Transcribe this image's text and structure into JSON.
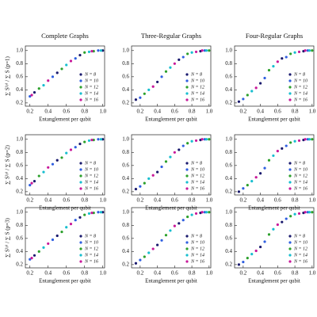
{
  "chart_data": [
    {
      "type": "scatter",
      "title": "Complete Graphs",
      "ylabel": "∑ S⁽ᵖ⁾ / ∑ S (p=1)",
      "xlabel": "Entanglement per qubit",
      "xlim": [
        0.15,
        1.02
      ],
      "ylim": [
        0.15,
        1.07
      ],
      "xticks": [
        0.2,
        0.4,
        0.6,
        0.8,
        {
          "value": 1,
          "label": "1.0"
        }
      ],
      "yticks": [
        0.2,
        0.4,
        0.6,
        0.8,
        {
          "value": 1,
          "label": "1.0"
        }
      ],
      "series": [
        {
          "name": "N = 8",
          "color": "#1a1a6e",
          "x": [
            0.25,
            0.5,
            0.75,
            1.0
          ],
          "values": [
            0.36,
            0.66,
            0.93,
            1.0
          ]
        },
        {
          "name": "N = 10",
          "color": "#2f5fe0",
          "x": [
            0.2,
            0.45,
            0.7,
            0.95
          ],
          "values": [
            0.3,
            0.6,
            0.88,
            1.0
          ]
        },
        {
          "name": "N = 12",
          "color": "#2ca02c",
          "x": [
            0.3,
            0.55,
            0.8,
            0.9
          ],
          "values": [
            0.42,
            0.72,
            0.97,
            0.99
          ]
        },
        {
          "name": "N = 14",
          "color": "#17becf",
          "x": [
            0.35,
            0.6,
            0.85,
            0.98
          ],
          "values": [
            0.47,
            0.78,
            0.98,
            1.0
          ]
        },
        {
          "name": "N = 16",
          "color": "#c8189a",
          "x": [
            0.22,
            0.4,
            0.65,
            0.88
          ],
          "values": [
            0.32,
            0.54,
            0.84,
            0.99
          ]
        }
      ]
    },
    {
      "type": "scatter",
      "title": "Three-Regular Graphs",
      "xlabel": "Entanglement per qubit",
      "xlim": [
        0.1,
        1.02
      ],
      "ylim": [
        0.15,
        1.07
      ],
      "xticks": [
        0.2,
        0.4,
        0.6,
        0.8,
        {
          "value": 1,
          "label": "1.0"
        }
      ],
      "yticks": [
        0.2,
        0.4,
        0.6,
        0.8,
        {
          "value": 1,
          "label": "1.0"
        }
      ],
      "series": [
        {
          "name": "N = 8",
          "color": "#1a1a6e",
          "x": [
            0.15,
            0.4,
            0.65,
            0.9
          ],
          "values": [
            0.25,
            0.52,
            0.86,
            0.99
          ]
        },
        {
          "name": "N = 10",
          "color": "#2f5fe0",
          "x": [
            0.2,
            0.45,
            0.7,
            0.95
          ],
          "values": [
            0.28,
            0.6,
            0.9,
            1.0
          ]
        },
        {
          "name": "N = 12",
          "color": "#2ca02c",
          "x": [
            0.25,
            0.5,
            0.75,
            1.0
          ],
          "values": [
            0.34,
            0.68,
            0.95,
            1.0
          ]
        },
        {
          "name": "N = 14",
          "color": "#17becf",
          "x": [
            0.3,
            0.55,
            0.8,
            0.97
          ],
          "values": [
            0.4,
            0.74,
            0.97,
            1.0
          ]
        },
        {
          "name": "N = 16",
          "color": "#c8189a",
          "x": [
            0.35,
            0.6,
            0.85,
            0.92
          ],
          "values": [
            0.45,
            0.8,
            0.98,
            1.0
          ]
        }
      ]
    },
    {
      "type": "scatter",
      "title": "Four-Regular Graphs",
      "xlabel": "Entanglement per qubit",
      "xlim": [
        0.1,
        1.02
      ],
      "ylim": [
        0.15,
        1.07
      ],
      "xticks": [
        0.2,
        0.4,
        0.6,
        0.8,
        {
          "value": 1,
          "label": "1.0"
        }
      ],
      "yticks": [
        0.2,
        0.4,
        0.6,
        0.8,
        {
          "value": 1,
          "label": "1.0"
        }
      ],
      "series": [
        {
          "name": "N = 8",
          "color": "#1a1a6e",
          "x": [
            0.15,
            0.4,
            0.65,
            0.9
          ],
          "values": [
            0.22,
            0.5,
            0.88,
            0.99
          ]
        },
        {
          "name": "N = 10",
          "color": "#2f5fe0",
          "x": [
            0.2,
            0.45,
            0.7,
            0.95
          ],
          "values": [
            0.26,
            0.58,
            0.9,
            1.0
          ]
        },
        {
          "name": "N = 12",
          "color": "#2ca02c",
          "x": [
            0.25,
            0.5,
            0.75,
            1.0
          ],
          "values": [
            0.32,
            0.7,
            0.95,
            1.0
          ]
        },
        {
          "name": "N = 14",
          "color": "#17becf",
          "x": [
            0.3,
            0.55,
            0.8,
            0.97
          ],
          "values": [
            0.38,
            0.76,
            0.97,
            1.0
          ]
        },
        {
          "name": "N = 16",
          "color": "#c8189a",
          "x": [
            0.35,
            0.6,
            0.85,
            0.92
          ],
          "values": [
            0.43,
            0.83,
            0.98,
            1.0
          ]
        }
      ]
    },
    {
      "type": "scatter",
      "ylabel": "∑ S⁽ᵖ⁾ / ∑ S (p=2)",
      "xlabel": "Entanglement per qubit",
      "xlim": [
        0.15,
        1.02
      ],
      "ylim": [
        0.15,
        1.07
      ],
      "xticks": [
        0.2,
        0.4,
        0.6,
        0.8,
        {
          "value": 1,
          "label": "1.0"
        }
      ],
      "yticks": [
        0.2,
        0.4,
        0.6,
        0.8,
        {
          "value": 1,
          "label": "1.0"
        }
      ],
      "series": [
        {
          "name": "N = 8",
          "color": "#1a1a6e",
          "x": [
            0.25,
            0.5,
            0.75,
            1.0
          ],
          "values": [
            0.36,
            0.68,
            0.93,
            1.0
          ]
        },
        {
          "name": "N = 10",
          "color": "#2f5fe0",
          "x": [
            0.2,
            0.45,
            0.7,
            0.95
          ],
          "values": [
            0.3,
            0.62,
            0.88,
            1.0
          ]
        },
        {
          "name": "N = 12",
          "color": "#2ca02c",
          "x": [
            0.3,
            0.55,
            0.8,
            0.9
          ],
          "values": [
            0.44,
            0.72,
            0.96,
            0.99
          ]
        },
        {
          "name": "N = 14",
          "color": "#17becf",
          "x": [
            0.35,
            0.6,
            0.85,
            0.98
          ],
          "values": [
            0.5,
            0.79,
            0.98,
            1.0
          ]
        },
        {
          "name": "N = 16",
          "color": "#c8189a",
          "x": [
            0.22,
            0.4,
            0.65,
            0.88
          ],
          "values": [
            0.33,
            0.57,
            0.84,
            0.99
          ]
        }
      ]
    },
    {
      "type": "scatter",
      "xlabel": "Entanglement per qubit",
      "xlim": [
        0.1,
        1.02
      ],
      "ylim": [
        0.15,
        1.07
      ],
      "xticks": [
        0.2,
        0.4,
        0.6,
        0.8,
        {
          "value": 1,
          "label": "1.0"
        }
      ],
      "yticks": [
        0.2,
        0.4,
        0.6,
        0.8,
        {
          "value": 1,
          "label": "1.0"
        }
      ],
      "series": [
        {
          "name": "N = 8",
          "color": "#1a1a6e",
          "x": [
            0.15,
            0.4,
            0.65,
            0.9
          ],
          "values": [
            0.24,
            0.5,
            0.84,
            0.99
          ]
        },
        {
          "name": "N = 10",
          "color": "#2f5fe0",
          "x": [
            0.2,
            0.45,
            0.7,
            0.95
          ],
          "values": [
            0.28,
            0.58,
            0.9,
            1.0
          ]
        },
        {
          "name": "N = 12",
          "color": "#2ca02c",
          "x": [
            0.25,
            0.5,
            0.75,
            1.0
          ],
          "values": [
            0.33,
            0.66,
            0.94,
            1.0
          ]
        },
        {
          "name": "N = 14",
          "color": "#17becf",
          "x": [
            0.3,
            0.55,
            0.8,
            0.97
          ],
          "values": [
            0.4,
            0.73,
            0.97,
            1.0
          ]
        },
        {
          "name": "N = 16",
          "color": "#c8189a",
          "x": [
            0.35,
            0.6,
            0.85,
            0.92
          ],
          "values": [
            0.45,
            0.8,
            0.98,
            1.0
          ]
        }
      ]
    },
    {
      "type": "scatter",
      "xlabel": "Entanglement per qubit",
      "xlim": [
        0.1,
        1.02
      ],
      "ylim": [
        0.15,
        1.07
      ],
      "xticks": [
        0.2,
        0.4,
        0.6,
        0.8,
        {
          "value": 1,
          "label": "1.0"
        }
      ],
      "yticks": [
        0.2,
        0.4,
        0.6,
        0.8,
        {
          "value": 1,
          "label": "1.0"
        }
      ],
      "series": [
        {
          "name": "N = 8",
          "color": "#1a1a6e",
          "x": [
            0.15,
            0.4,
            0.65,
            0.9
          ],
          "values": [
            0.2,
            0.48,
            0.86,
            0.99
          ]
        },
        {
          "name": "N = 10",
          "color": "#2f5fe0",
          "x": [
            0.2,
            0.45,
            0.7,
            0.95
          ],
          "values": [
            0.25,
            0.56,
            0.9,
            1.0
          ]
        },
        {
          "name": "N = 12",
          "color": "#2ca02c",
          "x": [
            0.25,
            0.5,
            0.75,
            1.0
          ],
          "values": [
            0.3,
            0.68,
            0.95,
            1.0
          ]
        },
        {
          "name": "N = 14",
          "color": "#17becf",
          "x": [
            0.3,
            0.55,
            0.8,
            0.97
          ],
          "values": [
            0.36,
            0.75,
            0.97,
            1.0
          ]
        },
        {
          "name": "N = 16",
          "color": "#c8189a",
          "x": [
            0.35,
            0.6,
            0.85,
            0.92
          ],
          "values": [
            0.42,
            0.82,
            0.98,
            1.0
          ]
        }
      ]
    },
    {
      "type": "scatter",
      "ylabel": "∑ S⁽ᵖ⁾ / ∑ S (p=3)",
      "xlabel": "Entanglement per qubit",
      "xlim": [
        0.15,
        1.02
      ],
      "ylim": [
        0.15,
        1.07
      ],
      "xticks": [
        0.2,
        0.4,
        0.6,
        0.8,
        {
          "value": 1,
          "label": "1.0"
        }
      ],
      "yticks": [
        0.2,
        0.4,
        0.6,
        0.8,
        {
          "value": 1,
          "label": "1.0"
        }
      ],
      "series": [
        {
          "name": "N = 8",
          "color": "#1a1a6e",
          "x": [
            0.25,
            0.5,
            0.75,
            1.0
          ],
          "values": [
            0.34,
            0.64,
            0.92,
            1.0
          ]
        },
        {
          "name": "N = 10",
          "color": "#2f5fe0",
          "x": [
            0.2,
            0.45,
            0.7,
            0.95
          ],
          "values": [
            0.28,
            0.58,
            0.88,
            1.0
          ]
        },
        {
          "name": "N = 12",
          "color": "#2ca02c",
          "x": [
            0.3,
            0.55,
            0.8,
            0.9
          ],
          "values": [
            0.4,
            0.7,
            0.96,
            0.99
          ]
        },
        {
          "name": "N = 14",
          "color": "#17becf",
          "x": [
            0.35,
            0.6,
            0.85,
            0.98
          ],
          "values": [
            0.46,
            0.77,
            0.98,
            1.0
          ]
        },
        {
          "name": "N = 16",
          "color": "#c8189a",
          "x": [
            0.22,
            0.4,
            0.65,
            0.88
          ],
          "values": [
            0.3,
            0.52,
            0.82,
            0.99
          ]
        }
      ]
    },
    {
      "type": "scatter",
      "xlabel": "Entanglement per qubit",
      "xlim": [
        0.1,
        1.02
      ],
      "ylim": [
        0.15,
        1.07
      ],
      "xticks": [
        0.2,
        0.4,
        0.6,
        0.8,
        {
          "value": 1,
          "label": "1.0"
        }
      ],
      "yticks": [
        0.2,
        0.4,
        0.6,
        0.8,
        {
          "value": 1,
          "label": "1.0"
        }
      ],
      "series": [
        {
          "name": "N = 8",
          "color": "#1a1a6e",
          "x": [
            0.15,
            0.4,
            0.65,
            0.9
          ],
          "values": [
            0.22,
            0.5,
            0.83,
            0.99
          ]
        },
        {
          "name": "N = 10",
          "color": "#2f5fe0",
          "x": [
            0.2,
            0.45,
            0.7,
            0.95
          ],
          "values": [
            0.27,
            0.57,
            0.88,
            1.0
          ]
        },
        {
          "name": "N = 12",
          "color": "#2ca02c",
          "x": [
            0.25,
            0.5,
            0.75,
            1.0
          ],
          "values": [
            0.32,
            0.65,
            0.93,
            1.0
          ]
        },
        {
          "name": "N = 14",
          "color": "#17becf",
          "x": [
            0.3,
            0.55,
            0.8,
            0.97
          ],
          "values": [
            0.38,
            0.72,
            0.96,
            1.0
          ]
        },
        {
          "name": "N = 16",
          "color": "#c8189a",
          "x": [
            0.35,
            0.6,
            0.85,
            0.92
          ],
          "values": [
            0.44,
            0.79,
            0.98,
            1.0
          ]
        }
      ]
    },
    {
      "type": "scatter",
      "xlabel": "Entanglement per qubit",
      "xlim": [
        0.1,
        1.02
      ],
      "ylim": [
        0.15,
        1.07
      ],
      "xticks": [
        0.2,
        0.4,
        0.6,
        0.8,
        {
          "value": 1,
          "label": "1.0"
        }
      ],
      "yticks": [
        0.2,
        0.4,
        0.6,
        0.8,
        {
          "value": 1,
          "label": "1.0"
        }
      ],
      "series": [
        {
          "name": "N = 8",
          "color": "#1a1a6e",
          "x": [
            0.15,
            0.4,
            0.65,
            0.9
          ],
          "values": [
            0.2,
            0.47,
            0.85,
            0.99
          ]
        },
        {
          "name": "N = 10",
          "color": "#2f5fe0",
          "x": [
            0.2,
            0.45,
            0.7,
            0.95
          ],
          "values": [
            0.24,
            0.55,
            0.9,
            1.0
          ]
        },
        {
          "name": "N = 12",
          "color": "#2ca02c",
          "x": [
            0.25,
            0.5,
            0.75,
            1.0
          ],
          "values": [
            0.3,
            0.66,
            0.94,
            1.0
          ]
        },
        {
          "name": "N = 14",
          "color": "#17becf",
          "x": [
            0.3,
            0.55,
            0.8,
            0.97
          ],
          "values": [
            0.36,
            0.74,
            0.97,
            1.0
          ]
        },
        {
          "name": "N = 16",
          "color": "#c8189a",
          "x": [
            0.35,
            0.6,
            0.85,
            0.92
          ],
          "values": [
            0.41,
            0.81,
            0.98,
            1.0
          ]
        }
      ]
    }
  ]
}
